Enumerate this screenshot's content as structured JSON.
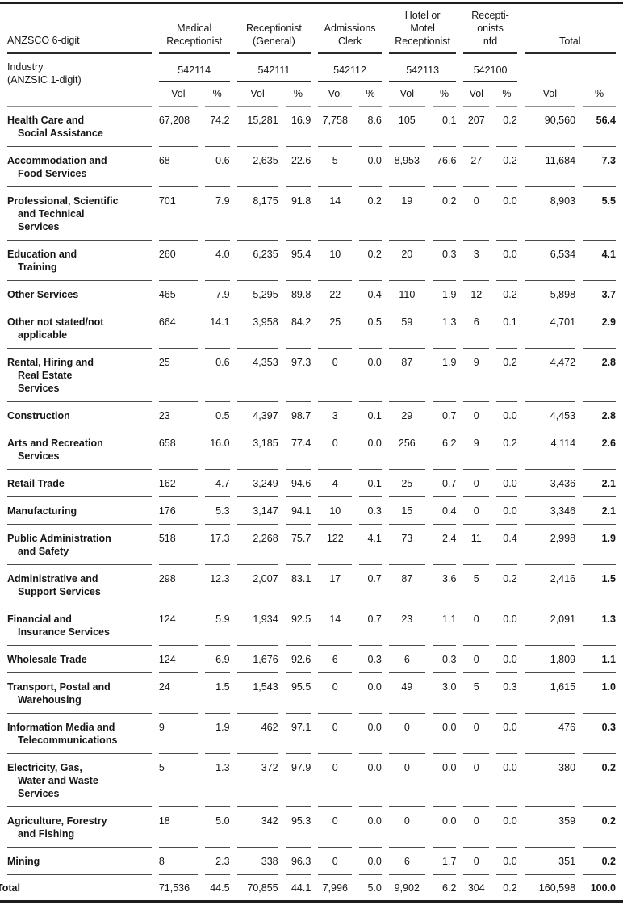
{
  "table": {
    "header": {
      "stub_top": "ANZSCO 6-digit",
      "stub_bottom": "Industry\n(ANZSIC 1-digit)",
      "occupations": [
        {
          "name": "Medical\nReceptionist",
          "code": "542114"
        },
        {
          "name": "Receptionist\n(General)",
          "code": "542111"
        },
        {
          "name": "Admissions\nClerk",
          "code": "542112"
        },
        {
          "name": "Hotel or\nMotel\nReceptionist",
          "code": "542113"
        },
        {
          "name": "Recepti-\nonists\nnfd",
          "code": "542100"
        }
      ],
      "total_label": "Total",
      "vol_label": "Vol",
      "pct_label": "%"
    },
    "rows": [
      {
        "industry": "Health Care and\nSocial Assistance",
        "values": [
          "67,208",
          "74.2",
          "15,281",
          "16.9",
          "7,758",
          "8.6",
          "105",
          "0.1",
          "207",
          "0.2",
          "90,560",
          "56.4"
        ]
      },
      {
        "industry": "Accommodation and\nFood Services",
        "values": [
          "68",
          "0.6",
          "2,635",
          "22.6",
          "5",
          "0.0",
          "8,953",
          "76.6",
          "27",
          "0.2",
          "11,684",
          "7.3"
        ]
      },
      {
        "industry": "Professional, Scientific\nand Technical\nServices",
        "values": [
          "701",
          "7.9",
          "8,175",
          "91.8",
          "14",
          "0.2",
          "19",
          "0.2",
          "0",
          "0.0",
          "8,903",
          "5.5"
        ]
      },
      {
        "industry": "Education and\nTraining",
        "values": [
          "260",
          "4.0",
          "6,235",
          "95.4",
          "10",
          "0.2",
          "20",
          "0.3",
          "3",
          "0.0",
          "6,534",
          "4.1"
        ]
      },
      {
        "industry": "Other Services",
        "values": [
          "465",
          "7.9",
          "5,295",
          "89.8",
          "22",
          "0.4",
          "110",
          "1.9",
          "12",
          "0.2",
          "5,898",
          "3.7"
        ]
      },
      {
        "industry": "Other not stated/not\napplicable",
        "values": [
          "664",
          "14.1",
          "3,958",
          "84.2",
          "25",
          "0.5",
          "59",
          "1.3",
          "6",
          "0.1",
          "4,701",
          "2.9"
        ]
      },
      {
        "industry": "Rental, Hiring and\nReal Estate\nServices",
        "values": [
          "25",
          "0.6",
          "4,353",
          "97.3",
          "0",
          "0.0",
          "87",
          "1.9",
          "9",
          "0.2",
          "4,472",
          "2.8"
        ]
      },
      {
        "industry": "Construction",
        "values": [
          "23",
          "0.5",
          "4,397",
          "98.7",
          "3",
          "0.1",
          "29",
          "0.7",
          "0",
          "0.0",
          "4,453",
          "2.8"
        ]
      },
      {
        "industry": "Arts and Recreation\nServices",
        "values": [
          "658",
          "16.0",
          "3,185",
          "77.4",
          "0",
          "0.0",
          "256",
          "6.2",
          "9",
          "0.2",
          "4,114",
          "2.6"
        ]
      },
      {
        "industry": "Retail Trade",
        "values": [
          "162",
          "4.7",
          "3,249",
          "94.6",
          "4",
          "0.1",
          "25",
          "0.7",
          "0",
          "0.0",
          "3,436",
          "2.1"
        ]
      },
      {
        "industry": "Manufacturing",
        "values": [
          "176",
          "5.3",
          "3,147",
          "94.1",
          "10",
          "0.3",
          "15",
          "0.4",
          "0",
          "0.0",
          "3,346",
          "2.1"
        ]
      },
      {
        "industry": "Public Administration\nand Safety",
        "values": [
          "518",
          "17.3",
          "2,268",
          "75.7",
          "122",
          "4.1",
          "73",
          "2.4",
          "11",
          "0.4",
          "2,998",
          "1.9"
        ]
      },
      {
        "industry": "Administrative and\nSupport Services",
        "values": [
          "298",
          "12.3",
          "2,007",
          "83.1",
          "17",
          "0.7",
          "87",
          "3.6",
          "5",
          "0.2",
          "2,416",
          "1.5"
        ]
      },
      {
        "industry": "Financial and\nInsurance Services",
        "values": [
          "124",
          "5.9",
          "1,934",
          "92.5",
          "14",
          "0.7",
          "23",
          "1.1",
          "0",
          "0.0",
          "2,091",
          "1.3"
        ]
      },
      {
        "industry": "Wholesale Trade",
        "values": [
          "124",
          "6.9",
          "1,676",
          "92.6",
          "6",
          "0.3",
          "6",
          "0.3",
          "0",
          "0.0",
          "1,809",
          "1.1"
        ]
      },
      {
        "industry": "Transport, Postal and\nWarehousing",
        "values": [
          "24",
          "1.5",
          "1,543",
          "95.5",
          "0",
          "0.0",
          "49",
          "3.0",
          "5",
          "0.3",
          "1,615",
          "1.0"
        ]
      },
      {
        "industry": "Information Media and\nTelecommunications",
        "values": [
          "9",
          "1.9",
          "462",
          "97.1",
          "0",
          "0.0",
          "0",
          "0.0",
          "0",
          "0.0",
          "476",
          "0.3"
        ]
      },
      {
        "industry": "Electricity, Gas,\nWater and Waste\nServices",
        "values": [
          "5",
          "1.3",
          "372",
          "97.9",
          "0",
          "0.0",
          "0",
          "0.0",
          "0",
          "0.0",
          "380",
          "0.2"
        ]
      },
      {
        "industry": "Agriculture, Forestry\nand Fishing",
        "values": [
          "18",
          "5.0",
          "342",
          "95.3",
          "0",
          "0.0",
          "0",
          "0.0",
          "0",
          "0.0",
          "359",
          "0.2"
        ]
      },
      {
        "industry": "Mining",
        "values": [
          "8",
          "2.3",
          "338",
          "96.3",
          "0",
          "0.0",
          "6",
          "1.7",
          "0",
          "0.0",
          "351",
          "0.2"
        ]
      }
    ],
    "total_row": {
      "industry": "Total",
      "values": [
        "71,536",
        "44.5",
        "70,855",
        "44.1",
        "7,996",
        "5.0",
        "9,902",
        "6.2",
        "304",
        "0.2",
        "160,598",
        "100.0"
      ]
    }
  }
}
